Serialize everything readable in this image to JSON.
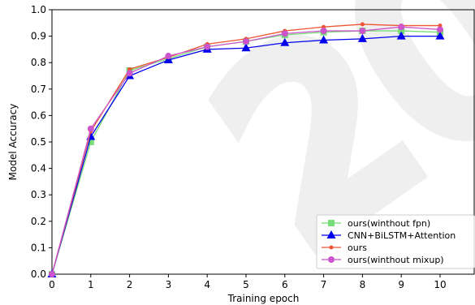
{
  "chart_data": {
    "type": "line",
    "xlabel": "Training epoch",
    "ylabel": "Model Accuracy",
    "xlim": [
      0,
      10.9
    ],
    "ylim": [
      0.0,
      1.0
    ],
    "xticks": [
      "0",
      "1",
      "2",
      "3",
      "4",
      "5",
      "6",
      "7",
      "8",
      "9",
      "10"
    ],
    "yticks": [
      "0.0",
      "0.1",
      "0.2",
      "0.3",
      "0.4",
      "0.5",
      "0.6",
      "0.7",
      "0.8",
      "0.9",
      "1.0"
    ],
    "x": [
      0,
      1,
      2,
      3,
      4,
      5,
      6,
      7,
      8,
      9,
      10
    ],
    "legend_position": "lower-right",
    "grid": false,
    "series": [
      {
        "name": "ours(winthout fpn)",
        "color": "#77dd77",
        "marker": "square",
        "values": [
          0.0,
          0.5,
          0.77,
          0.815,
          0.86,
          0.88,
          0.905,
          0.915,
          0.92,
          0.92,
          0.915
        ]
      },
      {
        "name": "CNN+BiLSTM+Attention",
        "color": "#0000ee",
        "marker": "triangle",
        "values": [
          0.0,
          0.52,
          0.75,
          0.81,
          0.85,
          0.855,
          0.875,
          0.885,
          0.89,
          0.9,
          0.9
        ]
      },
      {
        "name": "ours",
        "color": "#ee5533",
        "marker": "dot",
        "values": [
          0.0,
          0.54,
          0.775,
          0.82,
          0.87,
          0.89,
          0.92,
          0.935,
          0.945,
          0.94,
          0.94
        ]
      },
      {
        "name": "ours(winthout mixup)",
        "color": "#cc55cc",
        "marker": "circle",
        "values": [
          0.0,
          0.55,
          0.76,
          0.825,
          0.86,
          0.88,
          0.91,
          0.92,
          0.92,
          0.935,
          0.925
        ]
      }
    ]
  }
}
